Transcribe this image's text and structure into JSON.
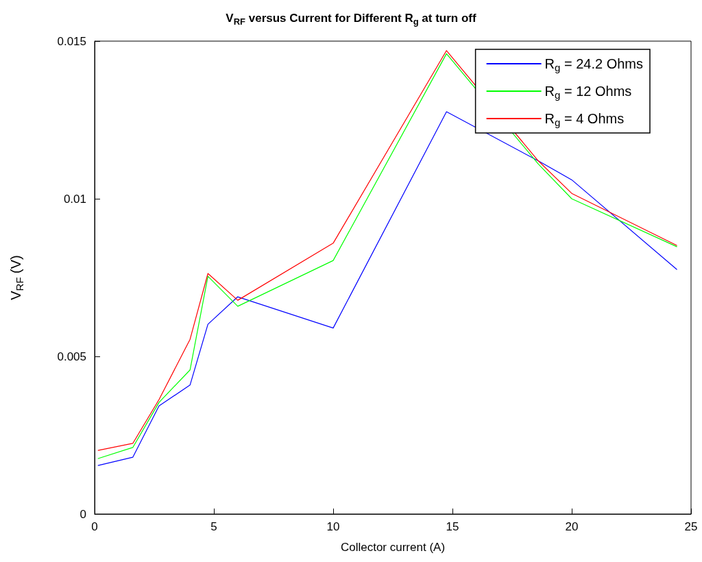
{
  "chart_data": {
    "type": "line",
    "title": "V$_{RF}$ versus Current for Different R$_{g}$ at turn off",
    "xlabel": "Collector current (A)",
    "ylabel": "V$_{RF}$ (V)",
    "x": [
      0.15,
      1.6,
      2.7,
      4.0,
      4.75,
      6.0,
      10.0,
      14.75,
      18.6,
      20.0,
      24.4
    ],
    "series": [
      {
        "name": "R$_{g}$ = 24.2 Ohms",
        "color": "#0000ff",
        "values": [
          0.00154,
          0.0018,
          0.00343,
          0.00409,
          0.00602,
          0.00689,
          0.0059,
          0.01276,
          0.0112,
          0.0106,
          0.00776
        ]
      },
      {
        "name": "R$_{g}$ = 12 Ohms",
        "color": "#00ff00",
        "values": [
          0.00176,
          0.00211,
          0.00354,
          0.00457,
          0.00754,
          0.00659,
          0.00804,
          0.0146,
          0.0111,
          0.01,
          0.00848
        ]
      },
      {
        "name": "R$_{g}$ = 4 Ohms",
        "color": "#ff0000",
        "values": [
          0.00202,
          0.00224,
          0.00363,
          0.00554,
          0.00763,
          0.00678,
          0.00859,
          0.0147,
          0.0112,
          0.01017,
          0.00852
        ]
      }
    ],
    "xlim": [
      0,
      25
    ],
    "xticks": [
      0,
      5,
      10,
      15,
      20,
      25
    ],
    "ylim": [
      0,
      0.015
    ],
    "yticks": [
      0,
      0.005,
      0.01,
      0.015
    ],
    "grid": false,
    "legend": "top right",
    "marker": "none",
    "line_style": "solid"
  }
}
